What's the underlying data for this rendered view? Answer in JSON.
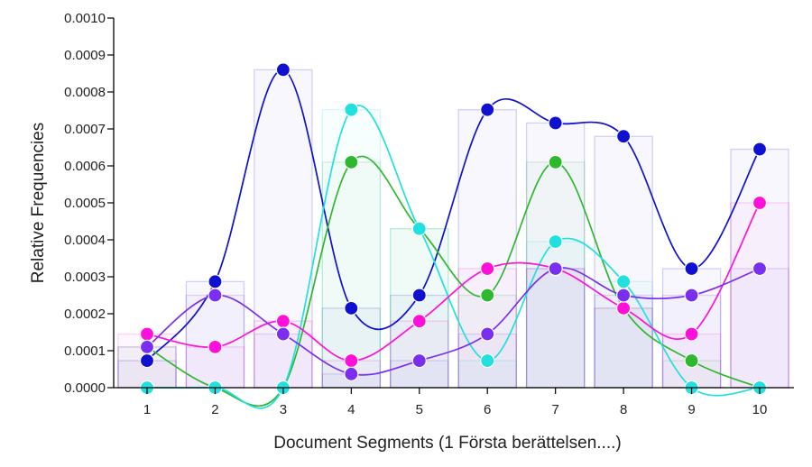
{
  "chart_data": {
    "type": "line",
    "title": "",
    "xlabel": "Document Segments (1 Första berättelsen....)",
    "ylabel": "Relative Frequencies",
    "categories": [
      "1",
      "2",
      "3",
      "4",
      "5",
      "6",
      "7",
      "8",
      "9",
      "10"
    ],
    "ylim": [
      0,
      0.001
    ],
    "yticks": [
      "0.0000",
      "0.0001",
      "0.0002",
      "0.0003",
      "0.0004",
      "0.0005",
      "0.0006",
      "0.0007",
      "0.0008",
      "0.0009",
      "0.0010"
    ],
    "grid": false,
    "legend": "none",
    "series": [
      {
        "color": "#1010d0",
        "values": [
          7.3e-05,
          0.000287,
          0.00086,
          0.000215,
          0.00025,
          0.000752,
          0.000716,
          0.00068,
          0.000322,
          0.000645
        ]
      },
      {
        "color": "#2eb82e",
        "values": [
          0.00011,
          0.0,
          0.0,
          0.00061,
          0.00043,
          0.00025,
          0.00061,
          0.000215,
          7.3e-05,
          0.0
        ]
      },
      {
        "color": "#20e0e0",
        "values": [
          0.0,
          0.0,
          0.0,
          0.000752,
          0.00043,
          7.3e-05,
          0.000395,
          0.000287,
          0.0,
          0.0
        ]
      },
      {
        "color": "#ff10d8",
        "values": [
          0.000145,
          0.00011,
          0.00018,
          7.3e-05,
          0.00018,
          0.000322,
          0.000322,
          0.000215,
          0.000145,
          0.0005
        ]
      },
      {
        "color": "#7a2ff0",
        "values": [
          0.00011,
          0.00025,
          0.000145,
          3.7e-05,
          7.3e-05,
          0.000145,
          0.000322,
          0.00025,
          0.00025,
          0.000322
        ]
      }
    ]
  }
}
